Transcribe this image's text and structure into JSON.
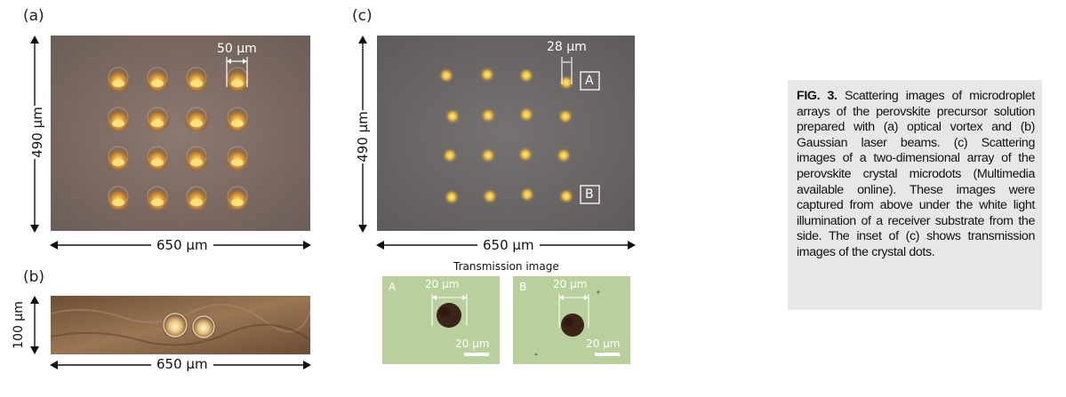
{
  "figure": {
    "caption_label": "FIG. 3.",
    "caption_text": " Scattering images of microdroplet arrays of the perovskite precursor solution prepared with (a) optical vortex and (b) Gaussian laser beams. (c) Scattering images of a two-dimensional array of the perovskite crystal microdots (Multimedia available online). These images were captured from above under the white light illumination of a receiver substrate from the side. The inset of (c) shows transmission images of the crystal dots."
  },
  "panel_a": {
    "label": "(a)",
    "height_label": "490 μm",
    "width_label": "650 μm",
    "scale_label": "50 μm"
  },
  "panel_b": {
    "label": "(b)",
    "height_label": "100 μm",
    "width_label": "650 μm"
  },
  "panel_c": {
    "label": "(c)",
    "height_label": "490 μm",
    "width_label": "650 μm",
    "scale_label": "28 μm",
    "marker_a": "A",
    "marker_b": "B",
    "inset_title": "Transmission image",
    "inset_a": {
      "letter": "A",
      "top_scale": "20 μm",
      "bar_scale": "20 μm"
    },
    "inset_b": {
      "letter": "B",
      "top_scale": "20 μm",
      "bar_scale": "20 μm"
    }
  },
  "colors": {
    "panel_a_bg": "#7a6a63",
    "panel_c_bg": "#6e6b6b",
    "panel_b_bg": "#8c6a4a",
    "inset_bg": "#b8cf9a",
    "caption_bg": "#e7e7e7"
  }
}
